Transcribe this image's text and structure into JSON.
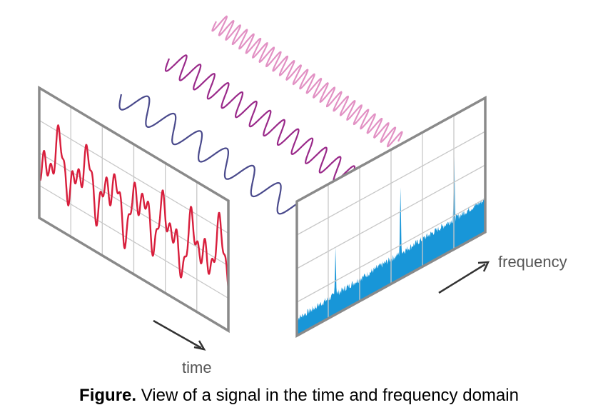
{
  "labels": {
    "time": "time",
    "frequency": "frequency"
  },
  "caption": {
    "label": "Figure.",
    "text": " View of a signal in the time and frequency domain"
  },
  "colors": {
    "frame": "#8a8a8a",
    "grid": "#c8c8c8",
    "time_signal": "#d81e3c",
    "spectrum": "#1896d8",
    "wave_low": "#4a4a8c",
    "wave_mid": "#9a2a8a",
    "wave_high": "#e291c4",
    "arrow": "#333333"
  }
}
